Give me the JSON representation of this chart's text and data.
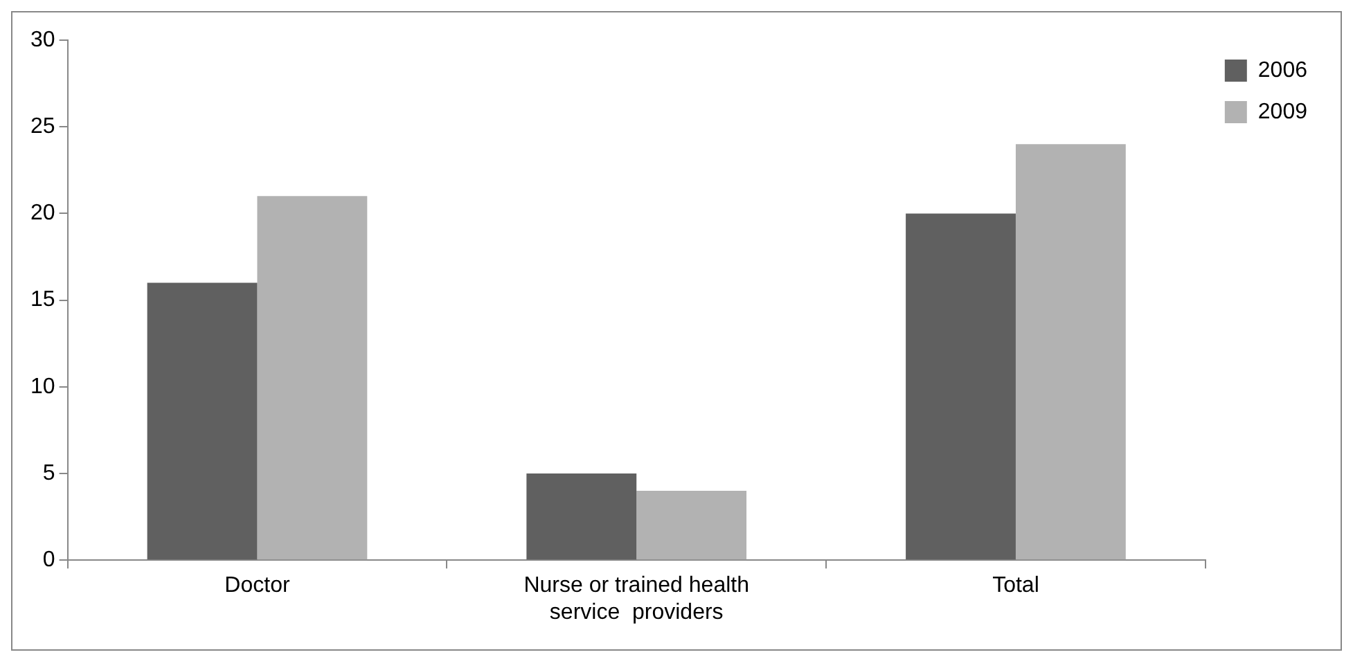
{
  "chart_data": {
    "type": "bar",
    "categories": [
      "Doctor",
      "Nurse or trained health service  providers",
      "Total"
    ],
    "series": [
      {
        "name": "2006",
        "color": "#606060",
        "values": [
          16,
          5,
          20
        ]
      },
      {
        "name": "2009",
        "color": "#b2b2b2",
        "values": [
          21,
          4,
          24
        ]
      }
    ],
    "ylim": [
      0,
      30
    ],
    "yticks": [
      0,
      5,
      10,
      15,
      20,
      25,
      30
    ],
    "grid": false,
    "legend": "right"
  }
}
